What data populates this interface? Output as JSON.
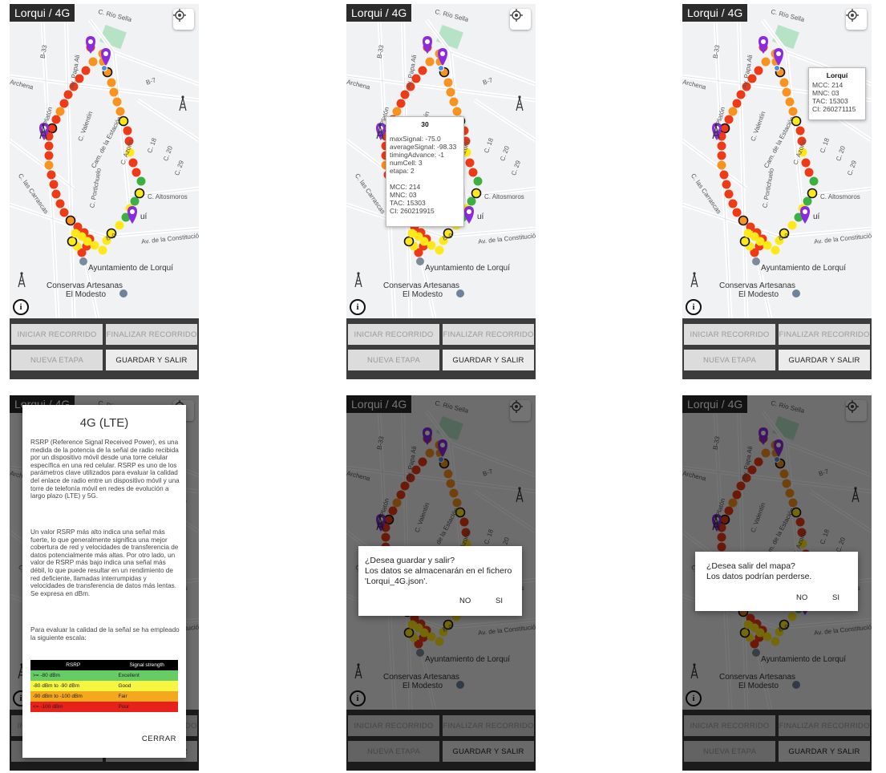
{
  "app": {
    "title": "Lorqui / 4G",
    "buttons": {
      "start": "INICIAR RECORRIDO",
      "finish": "FINALIZAR RECORRIDO",
      "new_stage": "NUEVA ETAPA",
      "save_exit": "GUARDAR Y SALIR"
    }
  },
  "map": {
    "streets": [
      "C. Río Sella",
      "C. Río Sella",
      "Av. Papa Ali",
      "B-7",
      "B-33",
      "C. Platón",
      "C. Valentín",
      "Cam. de la Estación",
      "C. Azorín",
      "C. 18",
      "C. 20",
      "C. 29",
      "C. Portichuelo",
      "C. Altosmoros",
      "B-9",
      "Av. de la Constitución",
      "C. las Carrascas",
      "Archena"
    ],
    "places": [
      "Ayuntamiento de Lorquí",
      "Conservas Artesanas El Modesto"
    ],
    "place_labels": {
      "ayuntamiento": "Ayuntamiento de Lorquí",
      "conservas_1": "Conservas Artesanas",
      "conservas_2": "El Modesto",
      "qui": "uí"
    }
  },
  "point_popup": {
    "title": "30",
    "lines": [
      "maxSignal: -75.0",
      "averageSignal: -98.33",
      "timingAdvance: -1",
      "numCell: 3",
      "etapa: 2",
      "",
      "MCC: 214",
      "MNC: 03",
      "TAC: 15303",
      "CI: 260219915"
    ]
  },
  "tower_popup": {
    "title": "Lorquí",
    "lines": [
      "MCC: 214",
      "MNC: 03",
      "TAC: 15303",
      "CI: 260271115"
    ]
  },
  "lte_dialog": {
    "title": "4G (LTE)",
    "paragraph1": "RSRP (Reference Signal Received Power), es una medida de la potencia de la señal de radio recibida por un dispositivo móvil desde una torre celular específica en una red celular. RSRP es uno de los parámetros clave utilizados para evaluar la calidad del enlace de radio entre un dispositivo móvil y una torre de telefonía móvil en redes de evolución a largo plazo (LTE) y 5G.",
    "paragraph2": "Un valor RSRP más alto indica una señal más fuerte, lo que generalmente significa una mejor cobertura de red y velocidades de transferencia de datos potencialmente más altas. Por otro lado, un valor de RSRP más bajo indica una señal más débil, lo que puede resultar en un rendimiento de red deficiente, llamadas interrumpidas y velocidades de transferencia de datos más lentas. Se expresa en dBm.",
    "paragraph3": "Para evaluar la calidad de la señal se ha empleado la siguiente escala:",
    "table_headers": [
      "RSRP",
      "Signal strength"
    ],
    "table_rows": [
      {
        "rsrp": ">= -80 dBm",
        "strength": "Excellent",
        "color": "#66cc66"
      },
      {
        "rsrp": "-80 dBm to -90 dBm",
        "strength": "Good",
        "color": "#f5f542"
      },
      {
        "rsrp": "-90 dBm to -100 dBm",
        "strength": "Fair",
        "color": "#f4a81d"
      },
      {
        "rsrp": "<= -100 dBm",
        "strength": "Poor",
        "color": "#e8211a"
      }
    ],
    "close": "CERRAR"
  },
  "save_dialog": {
    "message": "¿Desea guardar y salir?\nLos datos se almacenarán en el fichero 'Lorqui_4G.json'.",
    "no": "NO",
    "yes": "SI"
  },
  "exit_dialog": {
    "message": "¿Desea salir del mapa?\nLos datos podrían perderse.",
    "no": "NO",
    "yes": "SI"
  },
  "colors": {
    "excellent": "#3cb043",
    "good": "#ffe81a",
    "fair": "#f7931e",
    "poor": "#ee3a16",
    "marker": "#8a2be2",
    "park": "#b6e3c6"
  }
}
